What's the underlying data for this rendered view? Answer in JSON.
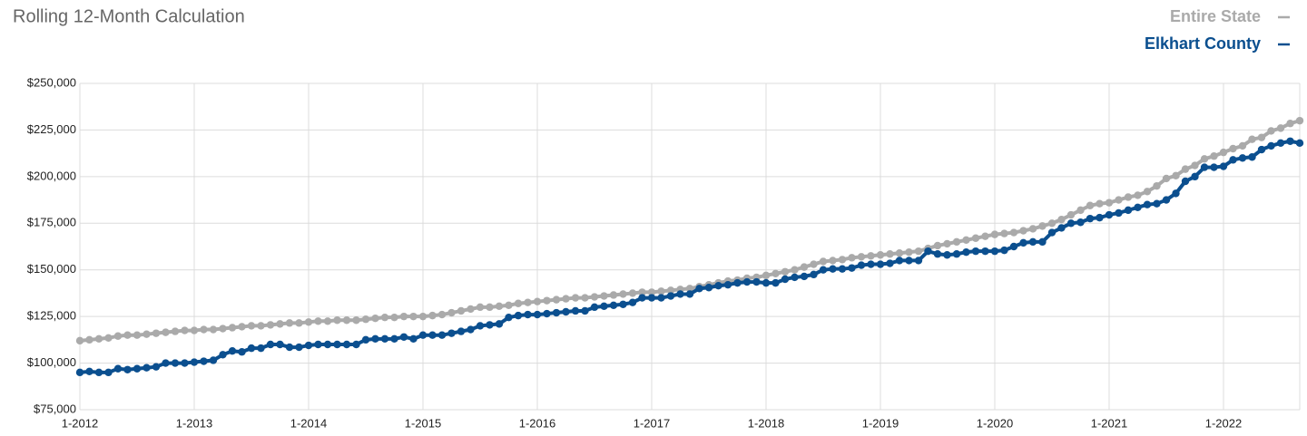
{
  "chart_data": {
    "type": "line",
    "title": "Rolling 12-Month Calculation",
    "categories": [
      "1-2012",
      null,
      null,
      null,
      null,
      null,
      null,
      null,
      null,
      null,
      null,
      null,
      "1-2013",
      null,
      null,
      null,
      null,
      null,
      null,
      null,
      null,
      null,
      null,
      null,
      "1-2014",
      null,
      null,
      null,
      null,
      null,
      null,
      null,
      null,
      null,
      null,
      null,
      "1-2015",
      null,
      null,
      null,
      null,
      null,
      null,
      null,
      null,
      null,
      null,
      null,
      "1-2016",
      null,
      null,
      null,
      null,
      null,
      null,
      null,
      null,
      null,
      null,
      null,
      "1-2017",
      null,
      null,
      null,
      null,
      null,
      null,
      null,
      null,
      null,
      null,
      null,
      "1-2018",
      null,
      null,
      null,
      null,
      null,
      null,
      null,
      null,
      null,
      null,
      null,
      "1-2019",
      null,
      null,
      null,
      null,
      null,
      null,
      null,
      null,
      null,
      null,
      null,
      "1-2020",
      null,
      null,
      null,
      null,
      null,
      null,
      null,
      null,
      null,
      null,
      null,
      "1-2021",
      null,
      null,
      null,
      null,
      null,
      null,
      null,
      null,
      null,
      null,
      null,
      "1-2022",
      null,
      null,
      null,
      null,
      null,
      null,
      null,
      null
    ],
    "series": [
      {
        "name": "Entire State",
        "color": "#aaaaaa",
        "values": [
          112000,
          112500,
          113000,
          113500,
          114500,
          115000,
          115000,
          115500,
          116000,
          116500,
          117000,
          117500,
          117500,
          118000,
          118000,
          118500,
          119000,
          119500,
          120000,
          120000,
          120500,
          121000,
          121500,
          121500,
          122000,
          122500,
          122500,
          123000,
          123000,
          123000,
          123500,
          124000,
          124500,
          124500,
          125000,
          125000,
          125000,
          125500,
          126000,
          127000,
          128000,
          129000,
          130000,
          130000,
          130500,
          131000,
          132000,
          132500,
          133000,
          133500,
          134000,
          134500,
          135000,
          135000,
          135500,
          136000,
          136500,
          137000,
          137500,
          138000,
          138000,
          138500,
          139000,
          139500,
          140000,
          141000,
          142000,
          143000,
          144000,
          144500,
          145500,
          146000,
          147000,
          148000,
          149000,
          150000,
          151500,
          153000,
          154500,
          155000,
          155500,
          156500,
          157000,
          157500,
          158000,
          158500,
          159000,
          159500,
          160000,
          161500,
          163000,
          164000,
          165000,
          166000,
          167000,
          168000,
          169000,
          169500,
          170000,
          171000,
          172000,
          173500,
          175000,
          177000,
          179500,
          182000,
          184500,
          185500,
          186000,
          187500,
          189000,
          190000,
          192000,
          195000,
          199000,
          200500,
          204000,
          206000,
          209500,
          211000,
          213000,
          215000,
          216500,
          220000,
          221000,
          224500,
          226000,
          228500,
          230000
        ]
      },
      {
        "name": "Elkhart County",
        "color": "#0b4f8f",
        "values": [
          95000,
          95500,
          95000,
          95000,
          97000,
          96500,
          97000,
          97500,
          98000,
          100000,
          100000,
          100000,
          100500,
          101000,
          101500,
          104500,
          106500,
          106000,
          108000,
          108000,
          110000,
          110000,
          108500,
          108500,
          109500,
          110000,
          110000,
          110000,
          110000,
          110000,
          112500,
          113000,
          113000,
          113000,
          114000,
          113000,
          115000,
          115000,
          115000,
          116000,
          117000,
          118000,
          120000,
          120500,
          121000,
          124500,
          125500,
          126000,
          126000,
          126500,
          127000,
          127500,
          128000,
          128000,
          130000,
          130500,
          131000,
          131500,
          132500,
          135000,
          135000,
          135000,
          136000,
          137000,
          137000,
          140000,
          140500,
          141500,
          142000,
          143000,
          143500,
          143500,
          143000,
          143000,
          145000,
          146000,
          146500,
          147500,
          150000,
          150500,
          150500,
          151000,
          152500,
          153000,
          153000,
          153500,
          155000,
          155000,
          155000,
          160000,
          158500,
          158000,
          158500,
          159500,
          160000,
          160000,
          160000,
          160500,
          162500,
          164500,
          165000,
          165000,
          170000,
          172500,
          175000,
          175500,
          177500,
          178000,
          179500,
          180500,
          182000,
          183500,
          185000,
          185500,
          187500,
          191000,
          197500,
          200000,
          205000,
          205000,
          205500,
          209000,
          210000,
          210500,
          214500,
          216500,
          218000,
          219000,
          218000
        ]
      }
    ],
    "ylim": [
      75000,
      250000
    ],
    "yticks": [
      {
        "value": 75000,
        "label": "$75,000"
      },
      {
        "value": 100000,
        "label": "$100,000"
      },
      {
        "value": 125000,
        "label": "$125,000"
      },
      {
        "value": 150000,
        "label": "$150,000"
      },
      {
        "value": 175000,
        "label": "$175,000"
      },
      {
        "value": 200000,
        "label": "$200,000"
      },
      {
        "value": 225000,
        "label": "$225,000"
      },
      {
        "value": 250000,
        "label": "$250,000"
      }
    ],
    "grid": true,
    "legend": "top-right"
  }
}
